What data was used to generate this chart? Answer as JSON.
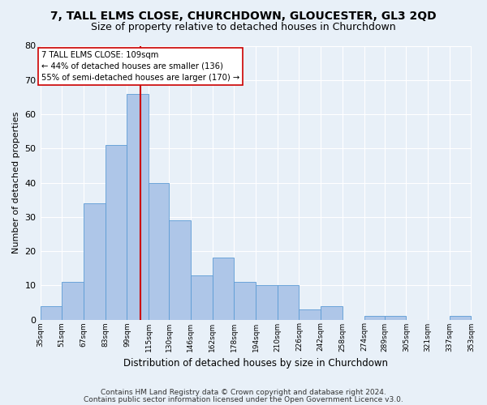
{
  "title": "7, TALL ELMS CLOSE, CHURCHDOWN, GLOUCESTER, GL3 2QD",
  "subtitle": "Size of property relative to detached houses in Churchdown",
  "xlabel": "Distribution of detached houses by size in Churchdown",
  "ylabel": "Number of detached properties",
  "bins": [
    "35sqm",
    "51sqm",
    "67sqm",
    "83sqm",
    "99sqm",
    "115sqm",
    "130sqm",
    "146sqm",
    "162sqm",
    "178sqm",
    "194sqm",
    "210sqm",
    "226sqm",
    "242sqm",
    "258sqm",
    "274sqm",
    "289sqm",
    "305sqm",
    "321sqm",
    "337sqm",
    "353sqm"
  ],
  "values": [
    4,
    11,
    34,
    51,
    66,
    40,
    29,
    13,
    18,
    11,
    10,
    10,
    3,
    4,
    0,
    1,
    1,
    0,
    0,
    1
  ],
  "bar_color": "#aec6e8",
  "bar_edge_color": "#5b9bd5",
  "vline_x": 109,
  "vline_color": "#cc0000",
  "bin_edges_sqm": [
    35,
    51,
    67,
    83,
    99,
    115,
    130,
    146,
    162,
    178,
    194,
    210,
    226,
    242,
    258,
    274,
    289,
    305,
    321,
    337,
    353
  ],
  "annotation_line1": "7 TALL ELMS CLOSE: 109sqm",
  "annotation_line2": "← 44% of detached houses are smaller (136)",
  "annotation_line3": "55% of semi-detached houses are larger (170) →",
  "annotation_box_color": "#ffffff",
  "annotation_box_edge": "#cc0000",
  "ylim": [
    0,
    80
  ],
  "yticks": [
    0,
    10,
    20,
    30,
    40,
    50,
    60,
    70,
    80
  ],
  "footer1": "Contains HM Land Registry data © Crown copyright and database right 2024.",
  "footer2": "Contains public sector information licensed under the Open Government Licence v3.0.",
  "bg_color": "#e8f0f8",
  "plot_bg_color": "#e8f0f8",
  "title_fontsize": 10,
  "subtitle_fontsize": 9
}
